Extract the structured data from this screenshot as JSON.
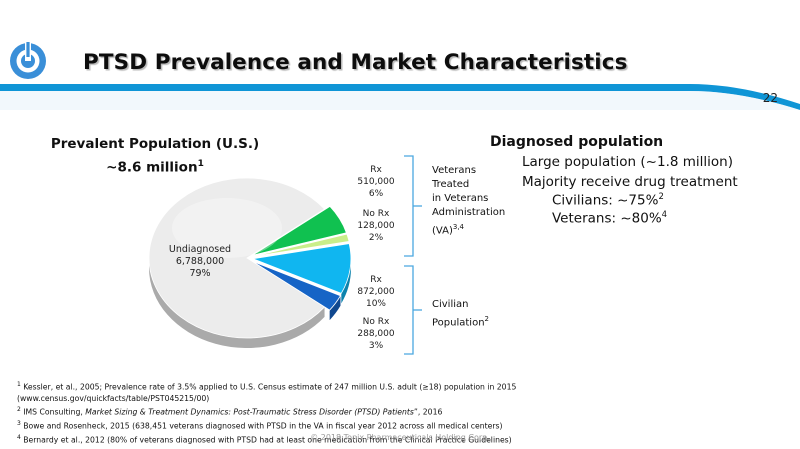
{
  "header": {
    "title": "PTSD Prevalence and Market Characteristics",
    "page_number": "22"
  },
  "colors": {
    "accent_blue": "#0f95d6",
    "undiagnosed": "#ececec",
    "va_rx": "#10c150",
    "va_no_rx": "#c9ee8a",
    "civ_rx": "#10b6f0",
    "civ_no_rx": "#1664c6"
  },
  "left": {
    "heading_line1": "Prevalent Population (U.S.)",
    "heading_line2": "~8.6 million",
    "heading_sup": "1"
  },
  "chart_data": {
    "type": "pie",
    "slices": [
      {
        "label": "Undiagnosed",
        "value": 6788000,
        "pct": "79%",
        "color": "#ececec"
      },
      {
        "label": "Rx",
        "value": 510000,
        "pct": "6%",
        "color": "#10c150"
      },
      {
        "label": "No Rx",
        "value": 128000,
        "pct": "2%",
        "color": "#c9ee8a"
      },
      {
        "label": "Rx",
        "value": 872000,
        "pct": "10%",
        "color": "#10b6f0"
      },
      {
        "label": "No Rx",
        "value": 288000,
        "pct": "3%",
        "color": "#1664c6"
      }
    ]
  },
  "pie_labels": {
    "undiagnosed": {
      "name": "Undiagnosed",
      "value": "6,788,000",
      "pct": "79%"
    },
    "va_rx": {
      "name": "Rx",
      "value": "510,000",
      "pct": "6%"
    },
    "va_no_rx": {
      "name": "No Rx",
      "value": "128,000",
      "pct": "2%"
    },
    "civ_rx": {
      "name": "Rx",
      "value": "872,000",
      "pct": "10%"
    },
    "civ_no_rx": {
      "name": "No Rx",
      "value": "288,000",
      "pct": "3%"
    }
  },
  "groups": {
    "va": {
      "line1": "Veterans",
      "line2": "Treated",
      "line3": "in Veterans",
      "line4": "Administration",
      "line5": "(VA)",
      "sup": "3,4"
    },
    "civilian": {
      "line1": "Civilian",
      "line2": "Population",
      "sup": "2"
    }
  },
  "right": {
    "heading": "Diagnosed population",
    "bullet1": "Large population (~1.8 million)",
    "bullet2": "Majority receive drug treatment",
    "sub1": "Civilians: ~75%",
    "sub1_sup": "2",
    "sub2": "Veterans: ~80%",
    "sub2_sup": "4"
  },
  "footnotes": {
    "f1_sup": "1",
    "f1_text": " Kessler, et al., 2005; Prevalence rate of 3.5% applied to U.S. Census estimate of 247 million U.S. adult (≥18) population in 2015",
    "f1_text2": "(www.census.gov/quickfacts/table/PST045215/00)",
    "f2_sup": "2",
    "f2_pre": " IMS Consulting, ",
    "f2_italic": "Market Sizing & Treatment Dynamics: Post-Traumatic Stress Disorder (PTSD) Patients",
    "f2_post": "”, 2016",
    "f3_sup": "3",
    "f3_text": " Bowe and Rosenheck, 2015 (638,451 veterans diagnosed with PTSD in the VA in fiscal year 2012 across all medical centers)",
    "f4_sup": "4",
    "f4_text": " Bernardy et al., 2012 (80% of veterans diagnosed with PTSD had at least one medication from the Clinical Practice Guidelines)"
  },
  "copyright": "© 2018 Tonix Pharmaceuticals Holding Corp."
}
